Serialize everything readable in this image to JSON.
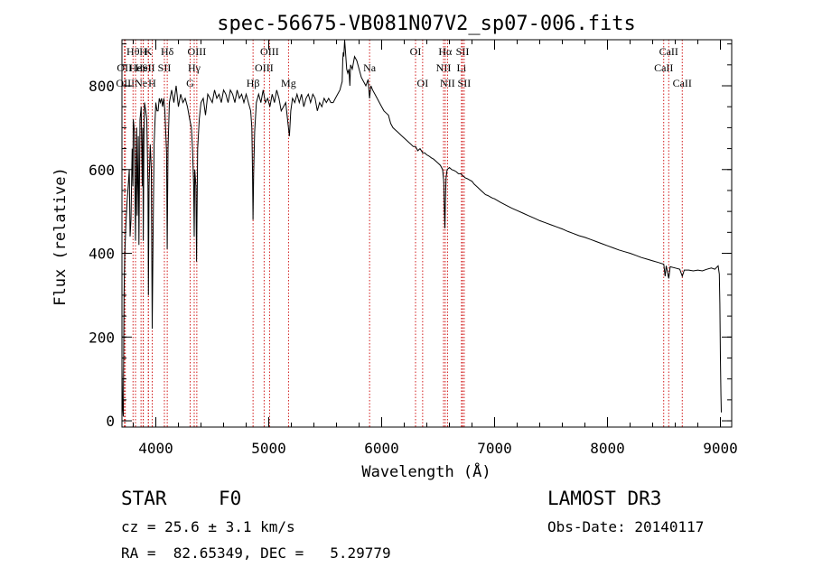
{
  "chart_data": {
    "type": "line",
    "title": "spec-56675-VB081N07V2_sp07-006.fits",
    "xlabel": "Wavelength (Å)",
    "ylabel": "Flux (relative)",
    "xlim": [
      3700,
      9100
    ],
    "ylim": [
      -15,
      910
    ],
    "x_ticks": [
      4000,
      5000,
      6000,
      7000,
      8000,
      9000
    ],
    "x_tick_labels": [
      "4000",
      "5000",
      "6000",
      "7000",
      "8000",
      "9000"
    ],
    "y_ticks": [
      0,
      200,
      400,
      600,
      800
    ],
    "y_tick_labels": [
      "0",
      "200",
      "400",
      "600",
      "800"
    ],
    "x_minor_step": 200,
    "y_minor_step": 50,
    "grid": false,
    "line_color": "#000000",
    "marker_color": "#cc0000",
    "series": [
      {
        "name": "spectrum",
        "points": [
          [
            3700,
            130
          ],
          [
            3705,
            40
          ],
          [
            3712,
            10
          ],
          [
            3718,
            300
          ],
          [
            3725,
            400
          ],
          [
            3735,
            470
          ],
          [
            3745,
            520
          ],
          [
            3755,
            560
          ],
          [
            3765,
            600
          ],
          [
            3772,
            440
          ],
          [
            3780,
            480
          ],
          [
            3790,
            650
          ],
          [
            3797,
            560
          ],
          [
            3800,
            720
          ],
          [
            3810,
            690
          ],
          [
            3820,
            430
          ],
          [
            3830,
            700
          ],
          [
            3835,
            490
          ],
          [
            3845,
            680
          ],
          [
            3850,
            420
          ],
          [
            3860,
            720
          ],
          [
            3870,
            750
          ],
          [
            3880,
            560
          ],
          [
            3885,
            700
          ],
          [
            3889,
            430
          ],
          [
            3895,
            690
          ],
          [
            3900,
            760
          ],
          [
            3910,
            740
          ],
          [
            3920,
            720
          ],
          [
            3930,
            560
          ],
          [
            3934,
            300
          ],
          [
            3940,
            560
          ],
          [
            3950,
            660
          ],
          [
            3960,
            600
          ],
          [
            3968,
            220
          ],
          [
            3975,
            430
          ],
          [
            3985,
            660
          ],
          [
            3990,
            700
          ],
          [
            4000,
            760
          ],
          [
            4010,
            740
          ],
          [
            4020,
            740
          ],
          [
            4030,
            770
          ],
          [
            4040,
            760
          ],
          [
            4050,
            770
          ],
          [
            4060,
            750
          ],
          [
            4070,
            770
          ],
          [
            4080,
            740
          ],
          [
            4095,
            640
          ],
          [
            4101,
            410
          ],
          [
            4108,
            650
          ],
          [
            4120,
            760
          ],
          [
            4140,
            790
          ],
          [
            4160,
            760
          ],
          [
            4180,
            800
          ],
          [
            4200,
            750
          ],
          [
            4220,
            780
          ],
          [
            4240,
            760
          ],
          [
            4260,
            770
          ],
          [
            4280,
            750
          ],
          [
            4300,
            720
          ],
          [
            4315,
            700
          ],
          [
            4325,
            650
          ],
          [
            4335,
            560
          ],
          [
            4340,
            440
          ],
          [
            4345,
            600
          ],
          [
            4355,
            560
          ],
          [
            4361,
            380
          ],
          [
            4370,
            650
          ],
          [
            4385,
            720
          ],
          [
            4400,
            760
          ],
          [
            4420,
            770
          ],
          [
            4440,
            730
          ],
          [
            4460,
            780
          ],
          [
            4480,
            770
          ],
          [
            4500,
            760
          ],
          [
            4520,
            790
          ],
          [
            4540,
            770
          ],
          [
            4560,
            780
          ],
          [
            4580,
            760
          ],
          [
            4600,
            790
          ],
          [
            4620,
            780
          ],
          [
            4640,
            760
          ],
          [
            4660,
            790
          ],
          [
            4680,
            780
          ],
          [
            4700,
            760
          ],
          [
            4720,
            790
          ],
          [
            4740,
            770
          ],
          [
            4760,
            780
          ],
          [
            4780,
            760
          ],
          [
            4800,
            780
          ],
          [
            4820,
            760
          ],
          [
            4840,
            740
          ],
          [
            4850,
            700
          ],
          [
            4856,
            600
          ],
          [
            4861,
            480
          ],
          [
            4866,
            590
          ],
          [
            4875,
            690
          ],
          [
            4890,
            760
          ],
          [
            4910,
            780
          ],
          [
            4930,
            760
          ],
          [
            4950,
            790
          ],
          [
            4970,
            760
          ],
          [
            4990,
            770
          ],
          [
            5010,
            750
          ],
          [
            5030,
            780
          ],
          [
            5050,
            760
          ],
          [
            5070,
            790
          ],
          [
            5090,
            770
          ],
          [
            5110,
            740
          ],
          [
            5130,
            750
          ],
          [
            5150,
            760
          ],
          [
            5170,
            710
          ],
          [
            5183,
            680
          ],
          [
            5195,
            740
          ],
          [
            5210,
            770
          ],
          [
            5230,
            760
          ],
          [
            5250,
            780
          ],
          [
            5270,
            760
          ],
          [
            5290,
            780
          ],
          [
            5310,
            750
          ],
          [
            5330,
            770
          ],
          [
            5350,
            780
          ],
          [
            5370,
            760
          ],
          [
            5390,
            780
          ],
          [
            5410,
            770
          ],
          [
            5430,
            740
          ],
          [
            5450,
            760
          ],
          [
            5470,
            750
          ],
          [
            5490,
            770
          ],
          [
            5510,
            760
          ],
          [
            5530,
            770
          ],
          [
            5550,
            760
          ],
          [
            5570,
            760
          ],
          [
            5590,
            770
          ],
          [
            5610,
            780
          ],
          [
            5630,
            790
          ],
          [
            5640,
            800
          ],
          [
            5650,
            810
          ],
          [
            5655,
            860
          ],
          [
            5660,
            880
          ],
          [
            5665,
            870
          ],
          [
            5672,
            910
          ],
          [
            5680,
            880
          ],
          [
            5690,
            840
          ],
          [
            5700,
            830
          ],
          [
            5710,
            840
          ],
          [
            5718,
            800
          ],
          [
            5725,
            850
          ],
          [
            5740,
            840
          ],
          [
            5760,
            870
          ],
          [
            5780,
            860
          ],
          [
            5800,
            840
          ],
          [
            5820,
            820
          ],
          [
            5840,
            810
          ],
          [
            5860,
            800
          ],
          [
            5880,
            815
          ],
          [
            5893,
            770
          ],
          [
            5905,
            800
          ],
          [
            5920,
            790
          ],
          [
            5940,
            780
          ],
          [
            5960,
            770
          ],
          [
            5980,
            760
          ],
          [
            6000,
            750
          ],
          [
            6020,
            740
          ],
          [
            6040,
            735
          ],
          [
            6060,
            730
          ],
          [
            6080,
            710
          ],
          [
            6100,
            700
          ],
          [
            6120,
            695
          ],
          [
            6140,
            690
          ],
          [
            6160,
            685
          ],
          [
            6180,
            680
          ],
          [
            6200,
            675
          ],
          [
            6220,
            670
          ],
          [
            6240,
            665
          ],
          [
            6260,
            660
          ],
          [
            6280,
            655
          ],
          [
            6300,
            655
          ],
          [
            6320,
            645
          ],
          [
            6340,
            650
          ],
          [
            6363,
            640
          ],
          [
            6380,
            640
          ],
          [
            6400,
            635
          ],
          [
            6420,
            632
          ],
          [
            6440,
            628
          ],
          [
            6460,
            625
          ],
          [
            6480,
            620
          ],
          [
            6500,
            615
          ],
          [
            6520,
            610
          ],
          [
            6540,
            600
          ],
          [
            6550,
            570
          ],
          [
            6556,
            500
          ],
          [
            6560,
            460
          ],
          [
            6564,
            520
          ],
          [
            6570,
            580
          ],
          [
            6580,
            600
          ],
          [
            6600,
            605
          ],
          [
            6620,
            600
          ],
          [
            6640,
            598
          ],
          [
            6660,
            595
          ],
          [
            6680,
            590
          ],
          [
            6700,
            590
          ],
          [
            6720,
            585
          ],
          [
            6740,
            580
          ],
          [
            6760,
            578
          ],
          [
            6780,
            575
          ],
          [
            6800,
            572
          ],
          [
            6820,
            565
          ],
          [
            6840,
            560
          ],
          [
            6860,
            555
          ],
          [
            6880,
            550
          ],
          [
            6900,
            545
          ],
          [
            6920,
            540
          ],
          [
            6940,
            538
          ],
          [
            6960,
            535
          ],
          [
            6980,
            532
          ],
          [
            7000,
            530
          ],
          [
            7050,
            522
          ],
          [
            7100,
            515
          ],
          [
            7150,
            508
          ],
          [
            7200,
            502
          ],
          [
            7250,
            496
          ],
          [
            7300,
            490
          ],
          [
            7350,
            484
          ],
          [
            7400,
            478
          ],
          [
            7450,
            473
          ],
          [
            7500,
            468
          ],
          [
            7550,
            463
          ],
          [
            7600,
            458
          ],
          [
            7650,
            452
          ],
          [
            7700,
            447
          ],
          [
            7750,
            442
          ],
          [
            7800,
            438
          ],
          [
            7850,
            433
          ],
          [
            7900,
            428
          ],
          [
            7950,
            423
          ],
          [
            8000,
            418
          ],
          [
            8050,
            413
          ],
          [
            8100,
            408
          ],
          [
            8150,
            404
          ],
          [
            8200,
            400
          ],
          [
            8250,
            395
          ],
          [
            8300,
            390
          ],
          [
            8350,
            386
          ],
          [
            8400,
            382
          ],
          [
            8450,
            378
          ],
          [
            8498,
            374
          ],
          [
            8510,
            345
          ],
          [
            8520,
            370
          ],
          [
            8542,
            340
          ],
          [
            8555,
            368
          ],
          [
            8600,
            365
          ],
          [
            8640,
            362
          ],
          [
            8662,
            345
          ],
          [
            8680,
            360
          ],
          [
            8720,
            360
          ],
          [
            8760,
            358
          ],
          [
            8800,
            360
          ],
          [
            8840,
            358
          ],
          [
            8880,
            362
          ],
          [
            8920,
            365
          ],
          [
            8950,
            362
          ],
          [
            8980,
            370
          ],
          [
            8990,
            350
          ],
          [
            8995,
            280
          ],
          [
            9000,
            150
          ],
          [
            9005,
            60
          ],
          [
            9008,
            20
          ]
        ]
      }
    ],
    "line_markers": [
      {
        "wavelength": 3722,
        "label": "OII",
        "row": 1
      },
      {
        "wavelength": 3730,
        "label": "OIII",
        "row": 2
      },
      {
        "wavelength": 3798,
        "label": "Hθ",
        "row": 0
      },
      {
        "wavelength": 3820,
        "label": "He",
        "row": 1
      },
      {
        "wavelength": 3869,
        "label": "Ne",
        "row": 2
      },
      {
        "wavelength": 3889,
        "label": "H",
        "row": 0
      },
      {
        "wavelength": 3889,
        "label": "HeI",
        "row": 1
      },
      {
        "wavelength": 3934,
        "label": "K",
        "row": 0
      },
      {
        "wavelength": 3934,
        "label": "SII",
        "row": 1
      },
      {
        "wavelength": 3968,
        "label": "H",
        "row": 2
      },
      {
        "wavelength": 4101,
        "label": "Hδ",
        "row": 0
      },
      {
        "wavelength": 4076,
        "label": "SII",
        "row": 1
      },
      {
        "wavelength": 4304,
        "label": "G",
        "row": 2
      },
      {
        "wavelength": 4340,
        "label": "Hγ",
        "row": 1
      },
      {
        "wavelength": 4363,
        "label": "OIII",
        "row": 0
      },
      {
        "wavelength": 4861,
        "label": "Hβ",
        "row": 2
      },
      {
        "wavelength": 4959,
        "label": "OIII",
        "row": 1
      },
      {
        "wavelength": 5007,
        "label": "OIII",
        "row": 0
      },
      {
        "wavelength": 5175,
        "label": "Mg",
        "row": 2
      },
      {
        "wavelength": 5893,
        "label": "Na",
        "row": 1
      },
      {
        "wavelength": 6300,
        "label": "OI",
        "row": 0
      },
      {
        "wavelength": 6363,
        "label": "OI",
        "row": 2
      },
      {
        "wavelength": 6548,
        "label": "NII",
        "row": 1
      },
      {
        "wavelength": 6563,
        "label": "Hα",
        "row": 0
      },
      {
        "wavelength": 6583,
        "label": "NII",
        "row": 2
      },
      {
        "wavelength": 6707,
        "label": "Li",
        "row": 1
      },
      {
        "wavelength": 6716,
        "label": "SII",
        "row": 0
      },
      {
        "wavelength": 6731,
        "label": "SII",
        "row": 2
      },
      {
        "wavelength": 8498,
        "label": "CaII",
        "row": 1
      },
      {
        "wavelength": 8542,
        "label": "CaII",
        "row": 0
      },
      {
        "wavelength": 8662,
        "label": "CaII",
        "row": 2
      }
    ]
  },
  "footer": {
    "object_class": "STAR",
    "subclass": "F0",
    "survey": "LAMOST DR3",
    "redshift": "cz = 25.6 ± 3.1 km/s",
    "obs_date": "Obs-Date: 20140117",
    "coords": "RA =  82.65349, DEC =   5.29779"
  }
}
